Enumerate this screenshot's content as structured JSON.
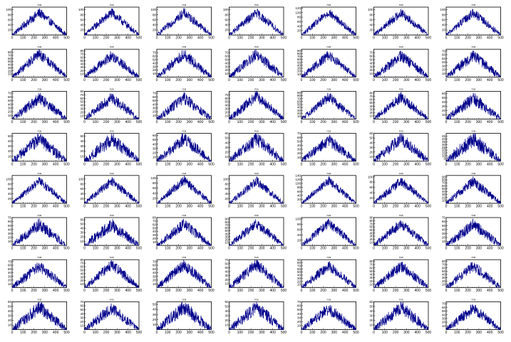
{
  "grid": {
    "rows": 8,
    "cols": 7
  },
  "colors": {
    "series": "#00008b",
    "frame": "#000000",
    "background": "#ffffff"
  },
  "chart_data": {
    "type": "line",
    "panel_title": "rca",
    "xlim": [
      0,
      500
    ],
    "x_ticks": [
      0,
      100,
      200,
      300,
      400,
      500
    ],
    "x_tick_labels": [
      "0",
      "100",
      "200",
      "300",
      "400",
      "500"
    ],
    "n_points": 250,
    "shape": "triangular peak centered near x=250, rising from ~0 at x=0 to the peak and back to ~0 at x=500, with heavy noise",
    "panels": [
      {
        "row": 0,
        "col": 0,
        "peak": 100,
        "ylim": [
          0,
          110
        ],
        "y_ticks": [
          20,
          40,
          60,
          80,
          100
        ]
      },
      {
        "row": 0,
        "col": 1,
        "peak": 100,
        "ylim": [
          0,
          110
        ],
        "y_ticks": [
          20,
          40,
          60,
          80,
          100
        ]
      },
      {
        "row": 0,
        "col": 2,
        "peak": 100,
        "ylim": [
          0,
          110
        ],
        "y_ticks": [
          20,
          40,
          60,
          80,
          100
        ]
      },
      {
        "row": 0,
        "col": 3,
        "peak": 100,
        "ylim": [
          0,
          110
        ],
        "y_ticks": [
          20,
          40,
          60,
          80,
          100
        ]
      },
      {
        "row": 0,
        "col": 4,
        "peak": 115,
        "ylim": [
          0,
          125
        ],
        "y_ticks": [
          20,
          40,
          60,
          80,
          100,
          120
        ]
      },
      {
        "row": 0,
        "col": 5,
        "peak": 100,
        "ylim": [
          0,
          110
        ],
        "y_ticks": [
          20,
          40,
          60,
          80,
          100
        ]
      },
      {
        "row": 0,
        "col": 6,
        "peak": 100,
        "ylim": [
          0,
          110
        ],
        "y_ticks": [
          20,
          40,
          60,
          80,
          100
        ]
      },
      {
        "row": 1,
        "col": 0,
        "peak": 85,
        "ylim": [
          0,
          90
        ],
        "y_ticks": [
          10,
          20,
          30,
          40,
          50,
          60,
          70,
          80
        ]
      },
      {
        "row": 1,
        "col": 1,
        "peak": 75,
        "ylim": [
          0,
          85
        ],
        "y_ticks": [
          10,
          20,
          30,
          40,
          50,
          60,
          70,
          80
        ]
      },
      {
        "row": 1,
        "col": 2,
        "peak": 75,
        "ylim": [
          0,
          80
        ],
        "y_ticks": [
          10,
          20,
          30,
          40,
          50,
          60,
          70
        ]
      },
      {
        "row": 1,
        "col": 3,
        "peak": 75,
        "ylim": [
          0,
          80
        ],
        "y_ticks": [
          10,
          20,
          30,
          40,
          50,
          60,
          70
        ]
      },
      {
        "row": 1,
        "col": 4,
        "peak": 85,
        "ylim": [
          0,
          95
        ],
        "y_ticks": [
          10,
          20,
          30,
          40,
          50,
          60,
          70,
          80,
          90
        ]
      },
      {
        "row": 1,
        "col": 5,
        "peak": 70,
        "ylim": [
          0,
          80
        ],
        "y_ticks": [
          10,
          20,
          30,
          40,
          50,
          60,
          70
        ]
      },
      {
        "row": 1,
        "col": 6,
        "peak": 65,
        "ylim": [
          0,
          75
        ],
        "y_ticks": [
          10,
          20,
          30,
          40,
          50,
          60,
          70
        ]
      },
      {
        "row": 2,
        "col": 0,
        "peak": 65,
        "ylim": [
          0,
          75
        ],
        "y_ticks": [
          10,
          20,
          30,
          40,
          50,
          60,
          70
        ]
      },
      {
        "row": 2,
        "col": 1,
        "peak": 70,
        "ylim": [
          0,
          80
        ],
        "y_ticks": [
          10,
          20,
          30,
          40,
          50,
          60,
          70,
          80
        ]
      },
      {
        "row": 2,
        "col": 2,
        "peak": 65,
        "ylim": [
          0,
          75
        ],
        "y_ticks": [
          10,
          20,
          30,
          40,
          50,
          60,
          70
        ]
      },
      {
        "row": 2,
        "col": 3,
        "peak": 75,
        "ylim": [
          0,
          80
        ],
        "y_ticks": [
          10,
          20,
          30,
          40,
          50,
          60,
          70
        ]
      },
      {
        "row": 2,
        "col": 4,
        "peak": 85,
        "ylim": [
          0,
          95
        ],
        "y_ticks": [
          10,
          20,
          30,
          40,
          50,
          60,
          70,
          80,
          90
        ]
      },
      {
        "row": 2,
        "col": 5,
        "peak": 75,
        "ylim": [
          0,
          85
        ],
        "y_ticks": [
          10,
          20,
          30,
          40,
          50,
          60,
          70,
          80
        ]
      },
      {
        "row": 2,
        "col": 6,
        "peak": 55,
        "ylim": [
          0,
          65
        ],
        "y_ticks": [
          10,
          20,
          30,
          40,
          50,
          60
        ]
      },
      {
        "row": 3,
        "col": 0,
        "peak": 50,
        "ylim": [
          0,
          55
        ],
        "y_ticks": [
          10,
          20,
          30,
          40,
          50
        ]
      },
      {
        "row": 3,
        "col": 1,
        "peak": 50,
        "ylim": [
          0,
          55
        ],
        "y_ticks": [
          10,
          20,
          30,
          40,
          50
        ]
      },
      {
        "row": 3,
        "col": 2,
        "peak": 60,
        "ylim": [
          0,
          65
        ],
        "y_ticks": [
          10,
          20,
          30,
          40,
          50,
          60
        ]
      },
      {
        "row": 3,
        "col": 3,
        "peak": 55,
        "ylim": [
          0,
          60
        ],
        "y_ticks": [
          10,
          20,
          30,
          40,
          50,
          60
        ]
      },
      {
        "row": 3,
        "col": 4,
        "peak": 60,
        "ylim": [
          0,
          70
        ],
        "y_ticks": [
          10,
          20,
          30,
          40,
          50,
          60,
          70
        ]
      },
      {
        "row": 3,
        "col": 5,
        "peak": 55,
        "ylim": [
          0,
          60
        ],
        "y_ticks": [
          10,
          20,
          30,
          40,
          50,
          60
        ]
      },
      {
        "row": 3,
        "col": 6,
        "peak": 45,
        "ylim": [
          0,
          50
        ],
        "y_ticks": [
          5,
          10,
          15,
          20,
          25,
          30,
          35,
          40,
          45
        ]
      },
      {
        "row": 4,
        "col": 0,
        "peak": 105,
        "ylim": [
          0,
          115
        ],
        "y_ticks": [
          20,
          40,
          60,
          80,
          100
        ]
      },
      {
        "row": 4,
        "col": 1,
        "peak": 105,
        "ylim": [
          0,
          115
        ],
        "y_ticks": [
          20,
          40,
          60,
          80,
          100
        ]
      },
      {
        "row": 4,
        "col": 2,
        "peak": 105,
        "ylim": [
          0,
          110
        ],
        "y_ticks": [
          20,
          40,
          60,
          80,
          100
        ]
      },
      {
        "row": 4,
        "col": 3,
        "peak": 105,
        "ylim": [
          0,
          115
        ],
        "y_ticks": [
          20,
          40,
          60,
          80,
          100
        ]
      },
      {
        "row": 4,
        "col": 4,
        "peak": 130,
        "ylim": [
          0,
          140
        ],
        "y_ticks": [
          20,
          40,
          60,
          80,
          100,
          120,
          140
        ]
      },
      {
        "row": 4,
        "col": 5,
        "peak": 95,
        "ylim": [
          0,
          105
        ],
        "y_ticks": [
          20,
          40,
          60,
          80,
          100
        ]
      },
      {
        "row": 4,
        "col": 6,
        "peak": 85,
        "ylim": [
          0,
          95
        ],
        "y_ticks": [
          10,
          20,
          30,
          40,
          50,
          60,
          70,
          80,
          90
        ]
      },
      {
        "row": 5,
        "col": 0,
        "peak": 60,
        "ylim": [
          0,
          70
        ],
        "y_ticks": [
          10,
          20,
          30,
          40,
          50,
          60,
          70
        ]
      },
      {
        "row": 5,
        "col": 1,
        "peak": 55,
        "ylim": [
          0,
          65
        ],
        "y_ticks": [
          10,
          20,
          30,
          40,
          50,
          60
        ]
      },
      {
        "row": 5,
        "col": 2,
        "peak": 70,
        "ylim": [
          0,
          80
        ],
        "y_ticks": [
          10,
          20,
          30,
          40,
          50,
          60,
          70,
          80
        ]
      },
      {
        "row": 5,
        "col": 3,
        "peak": 85,
        "ylim": [
          0,
          95
        ],
        "y_ticks": [
          10,
          20,
          30,
          40,
          50,
          60,
          70,
          80,
          90
        ]
      },
      {
        "row": 5,
        "col": 4,
        "peak": 95,
        "ylim": [
          0,
          105
        ],
        "y_ticks": [
          20,
          40,
          60,
          80,
          100
        ]
      },
      {
        "row": 5,
        "col": 5,
        "peak": 80,
        "ylim": [
          0,
          90
        ],
        "y_ticks": [
          10,
          20,
          30,
          40,
          50,
          60,
          70,
          80,
          90
        ]
      },
      {
        "row": 5,
        "col": 6,
        "peak": 60,
        "ylim": [
          0,
          70
        ],
        "y_ticks": [
          10,
          20,
          30,
          40,
          50,
          60,
          70
        ]
      },
      {
        "row": 6,
        "col": 0,
        "peak": 65,
        "ylim": [
          0,
          75
        ],
        "y_ticks": [
          10,
          20,
          30,
          40,
          50,
          60,
          70
        ]
      },
      {
        "row": 6,
        "col": 1,
        "peak": 75,
        "ylim": [
          0,
          80
        ],
        "y_ticks": [
          10,
          20,
          30,
          40,
          50,
          60,
          70,
          80
        ]
      },
      {
        "row": 6,
        "col": 2,
        "peak": 70,
        "ylim": [
          0,
          75
        ],
        "y_ticks": [
          10,
          20,
          30,
          40,
          50,
          60,
          70
        ]
      },
      {
        "row": 6,
        "col": 3,
        "peak": 65,
        "ylim": [
          0,
          70
        ],
        "y_ticks": [
          10,
          20,
          30,
          40,
          50,
          60,
          70
        ]
      },
      {
        "row": 6,
        "col": 4,
        "peak": 80,
        "ylim": [
          0,
          90
        ],
        "y_ticks": [
          10,
          20,
          30,
          40,
          50,
          60,
          70,
          80,
          90
        ]
      },
      {
        "row": 6,
        "col": 5,
        "peak": 75,
        "ylim": [
          0,
          85
        ],
        "y_ticks": [
          10,
          20,
          30,
          40,
          50,
          60,
          70,
          80
        ]
      },
      {
        "row": 6,
        "col": 6,
        "peak": 75,
        "ylim": [
          0,
          85
        ],
        "y_ticks": [
          10,
          20,
          30,
          40,
          50,
          60,
          70,
          80
        ]
      },
      {
        "row": 7,
        "col": 0,
        "peak": 55,
        "ylim": [
          0,
          60
        ],
        "y_ticks": [
          10,
          20,
          30,
          40,
          50,
          60
        ]
      },
      {
        "row": 7,
        "col": 1,
        "peak": 60,
        "ylim": [
          0,
          70
        ],
        "y_ticks": [
          10,
          20,
          30,
          40,
          50,
          60,
          70
        ]
      },
      {
        "row": 7,
        "col": 2,
        "peak": 50,
        "ylim": [
          0,
          55
        ],
        "y_ticks": [
          10,
          20,
          30,
          40,
          50
        ]
      },
      {
        "row": 7,
        "col": 3,
        "peak": 55,
        "ylim": [
          0,
          60
        ],
        "y_ticks": [
          10,
          20,
          30,
          40,
          50,
          60
        ]
      },
      {
        "row": 7,
        "col": 4,
        "peak": 60,
        "ylim": [
          0,
          70
        ],
        "y_ticks": [
          10,
          20,
          30,
          40,
          50,
          60,
          70
        ]
      },
      {
        "row": 7,
        "col": 5,
        "peak": 55,
        "ylim": [
          0,
          60
        ],
        "y_ticks": [
          10,
          20,
          30,
          40,
          50,
          60
        ]
      },
      {
        "row": 7,
        "col": 6,
        "peak": 65,
        "ylim": [
          0,
          75
        ],
        "y_ticks": [
          10,
          20,
          30,
          40,
          50,
          60,
          70
        ]
      }
    ]
  }
}
